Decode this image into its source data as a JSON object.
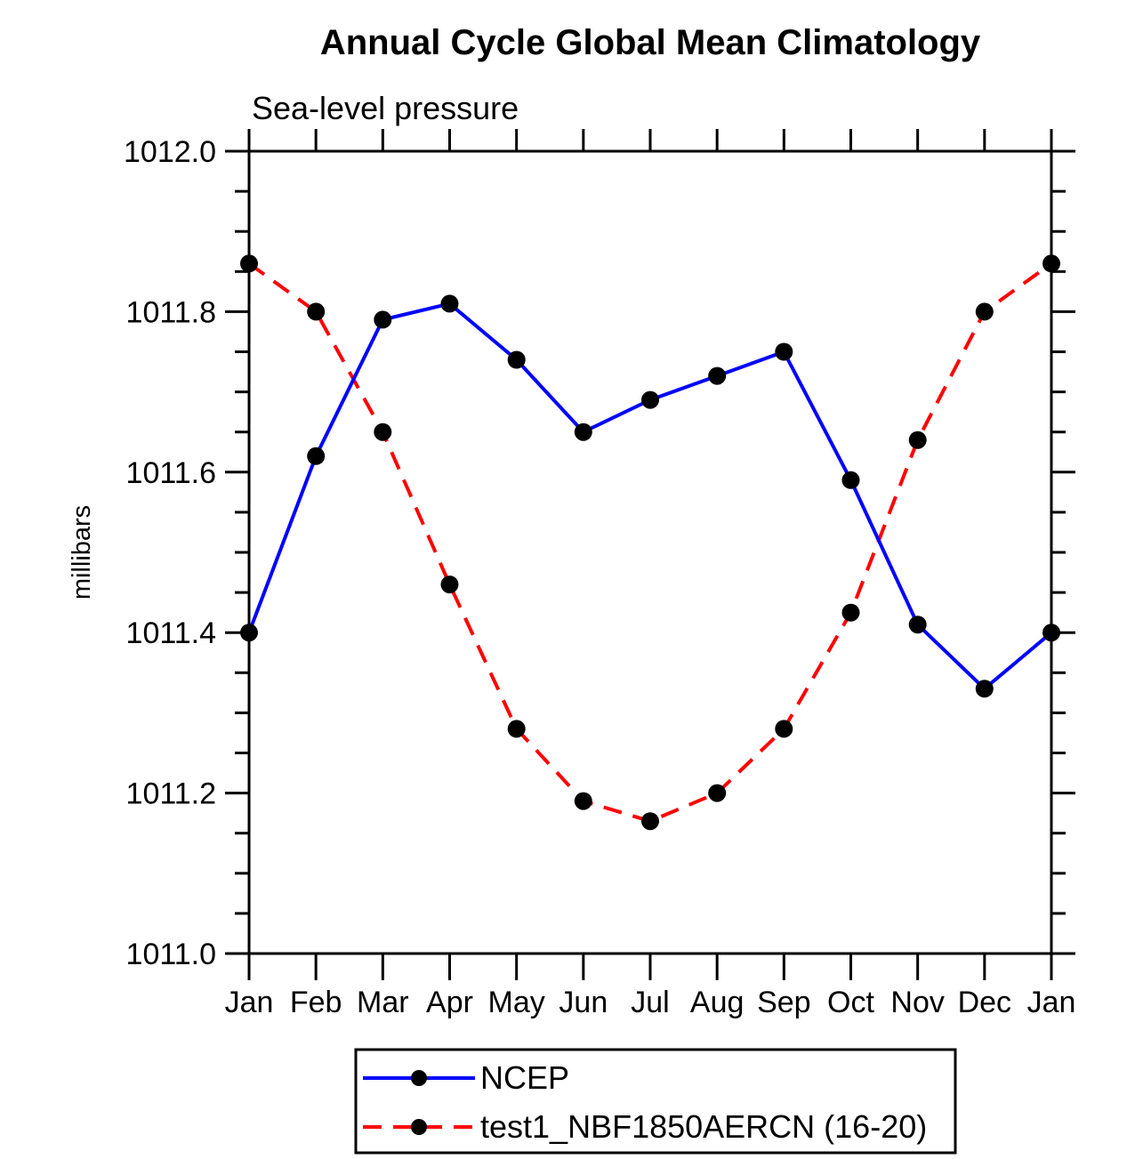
{
  "chart_data": {
    "type": "line",
    "title": "Annual Cycle Global Mean Climatology",
    "subtitle": "Sea-level pressure",
    "ylabel": "millibars",
    "categories": [
      "Jan",
      "Feb",
      "Mar",
      "Apr",
      "May",
      "Jun",
      "Jul",
      "Aug",
      "Sep",
      "Oct",
      "Nov",
      "Dec",
      "Jan"
    ],
    "ylim": [
      1011.0,
      1012.0
    ],
    "y_major_tick_interval": 0.2,
    "y_minor_tick_interval": 0.05,
    "y_tick_labels": [
      "1012.0",
      "1011.8",
      "1011.6",
      "1011.4",
      "1011.2",
      "1011.0"
    ],
    "grid": false,
    "legend_position": "bottom-center",
    "series": [
      {
        "name": "NCEP",
        "color": "#0000ff",
        "line_style": "solid",
        "marker": "filled-circle",
        "marker_color": "#000000",
        "values": [
          1011.4,
          1011.62,
          1011.79,
          1011.81,
          1011.74,
          1011.65,
          1011.69,
          1011.72,
          1011.75,
          1011.59,
          1011.41,
          1011.33,
          1011.4
        ]
      },
      {
        "name": "test1_NBF1850AERCN (16-20)",
        "color": "#ff0000",
        "line_style": "dashed",
        "marker": "filled-circle",
        "marker_color": "#000000",
        "values": [
          1011.86,
          1011.8,
          1011.65,
          1011.46,
          1011.28,
          1011.19,
          1011.165,
          1011.2,
          1011.28,
          1011.425,
          1011.64,
          1011.8,
          1011.86
        ]
      }
    ]
  },
  "colors": {
    "axis": "#000000",
    "background": "#ffffff",
    "ncep_line": "#0000ff",
    "test1_line": "#ff0000",
    "marker": "#000000"
  }
}
